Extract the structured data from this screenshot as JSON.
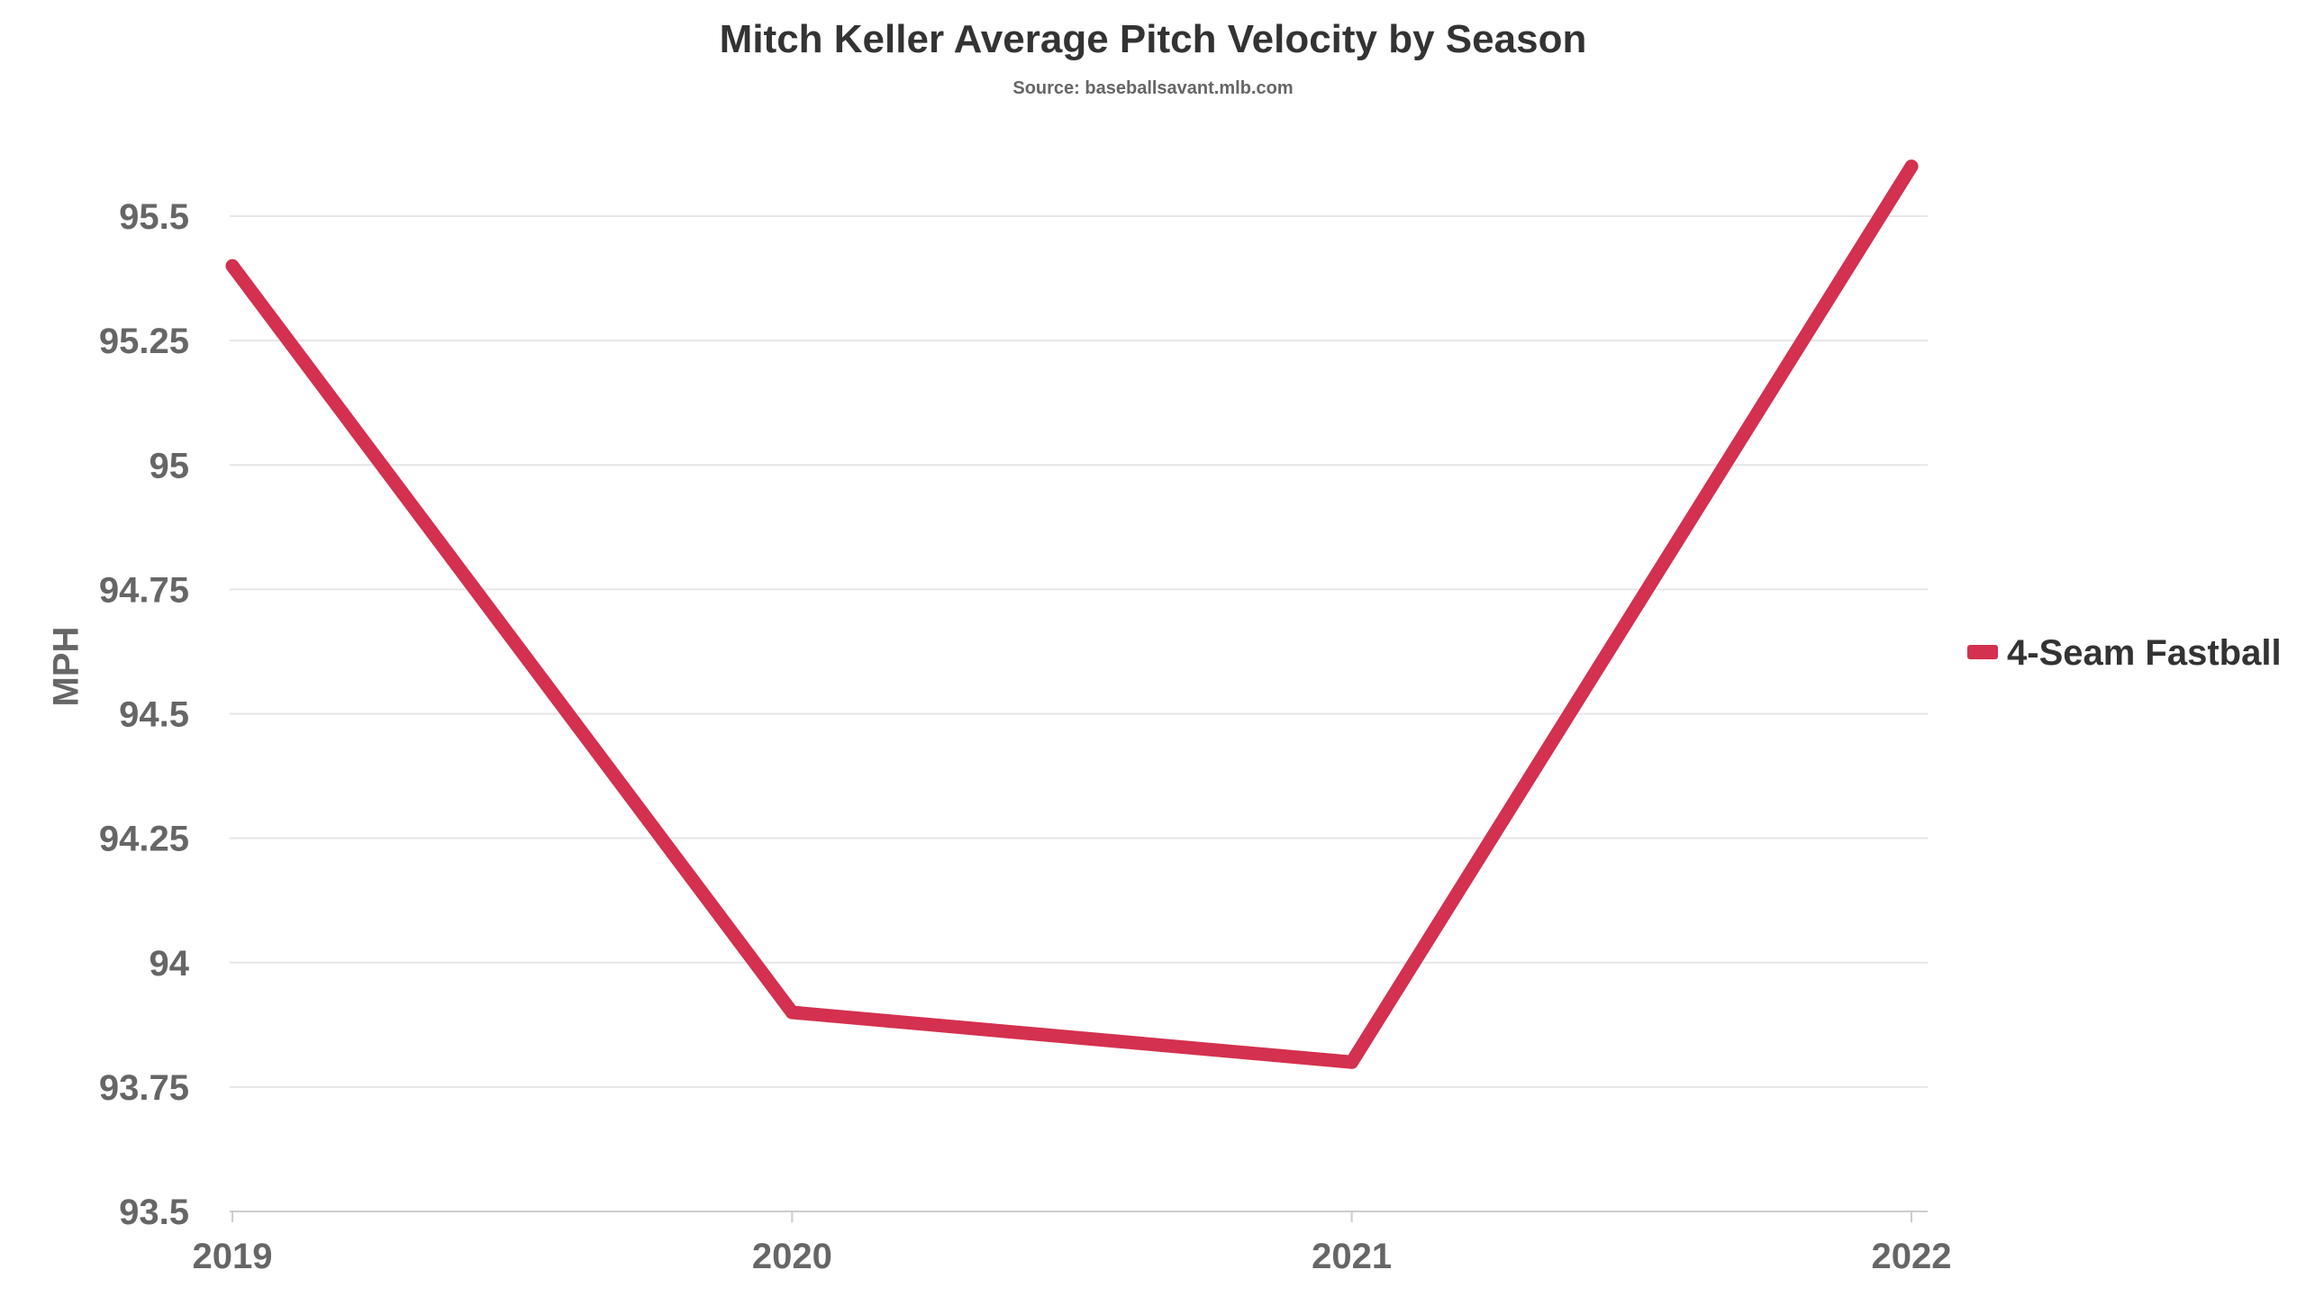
{
  "chart_data": {
    "type": "line",
    "title": "Mitch Keller Average Pitch Velocity by Season",
    "subtitle": "Source: baseballsavant.mlb.com",
    "xlabel": "",
    "ylabel": "MPH",
    "categories": [
      "2019",
      "2020",
      "2021",
      "2022"
    ],
    "y_ticks": [
      93.5,
      93.75,
      94,
      94.25,
      94.5,
      94.75,
      95,
      95.25,
      95.5
    ],
    "y_tick_labels": [
      "93.5",
      "93.75",
      "94",
      "94.25",
      "94.5",
      "94.75",
      "95",
      "95.25",
      "95.5"
    ],
    "ylim": [
      93.5,
      95.6
    ],
    "grid": true,
    "legend_position": "right",
    "series": [
      {
        "name": "4-Seam Fastball",
        "color": "#d4304f",
        "values": [
          95.4,
          93.9,
          93.8,
          95.6
        ]
      }
    ]
  }
}
